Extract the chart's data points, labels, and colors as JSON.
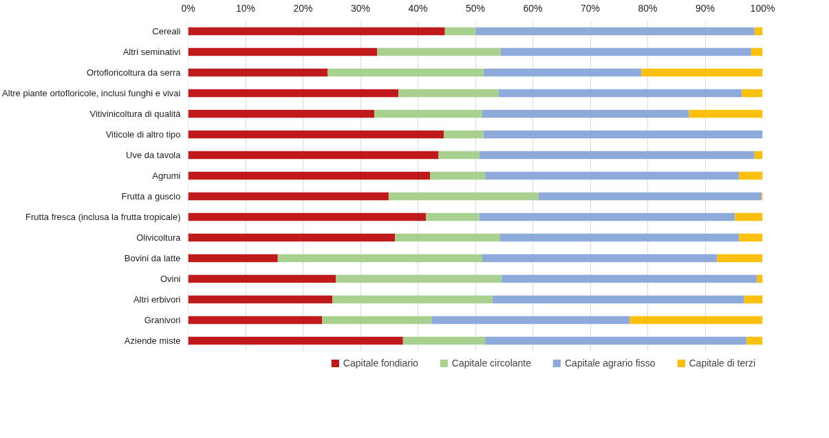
{
  "chart_data": {
    "type": "bar",
    "orientation": "horizontal",
    "stacked": true,
    "categories": [
      "Cereali",
      "Altri seminativi",
      "Ortofloricoltura da serra",
      "Altre piante ortofloricole, inclusi funghi e vivai",
      "Vitivinicoltura di qualità",
      "Viticole di altro tipo",
      "Uve da tavola",
      "Agrumi",
      "Frutta a guscio",
      "Frutta fresca (inclusa la frutta tropicale)",
      "Olivicoltura",
      "Bovini da latte",
      "Ovini",
      "Altri erbivori",
      "Granivori",
      "Aziende miste"
    ],
    "series": [
      {
        "name": "Capitale fondiario",
        "color": "#c0191b",
        "values": [
          44.7,
          32.9,
          24.3,
          36.6,
          32.4,
          44.5,
          43.6,
          42.1,
          34.9,
          41.4,
          36.0,
          15.6,
          25.7,
          25.1,
          23.3,
          37.4
        ]
      },
      {
        "name": "Capitale circolante",
        "color": "#a9d08e",
        "values": [
          5.4,
          21.5,
          27.1,
          17.4,
          18.8,
          6.9,
          7.1,
          9.6,
          26.1,
          9.3,
          18.3,
          35.6,
          28.9,
          27.9,
          19.1,
          14.3
        ]
      },
      {
        "name": "Capitale agrario fisso",
        "color": "#8eaadb",
        "values": [
          48.5,
          43.6,
          27.5,
          42.4,
          36.0,
          48.6,
          47.9,
          44.2,
          38.8,
          44.5,
          41.6,
          40.9,
          44.4,
          43.8,
          34.5,
          45.5
        ]
      },
      {
        "name": "Capitale di terzi",
        "color": "#fbbf0d",
        "values": [
          1.4,
          2.0,
          21.1,
          3.6,
          12.8,
          0,
          1.4,
          4.1,
          0.2,
          4.8,
          4.1,
          7.9,
          1.0,
          3.2,
          23.1,
          2.8
        ]
      }
    ],
    "xlim": [
      0,
      100
    ],
    "xticks": [
      {
        "value": 0,
        "label": "0%"
      },
      {
        "value": 10,
        "label": "10%"
      },
      {
        "value": 20,
        "label": "20%"
      },
      {
        "value": 30,
        "label": "30%"
      },
      {
        "value": 40,
        "label": "40%"
      },
      {
        "value": 50,
        "label": "50%"
      },
      {
        "value": 60,
        "label": "60%"
      },
      {
        "value": 70,
        "label": "70%"
      },
      {
        "value": 80,
        "label": "80%"
      },
      {
        "value": 90,
        "label": "90%"
      },
      {
        "value": 100,
        "label": "100%"
      }
    ],
    "grid": "x",
    "legend": "bottom"
  }
}
